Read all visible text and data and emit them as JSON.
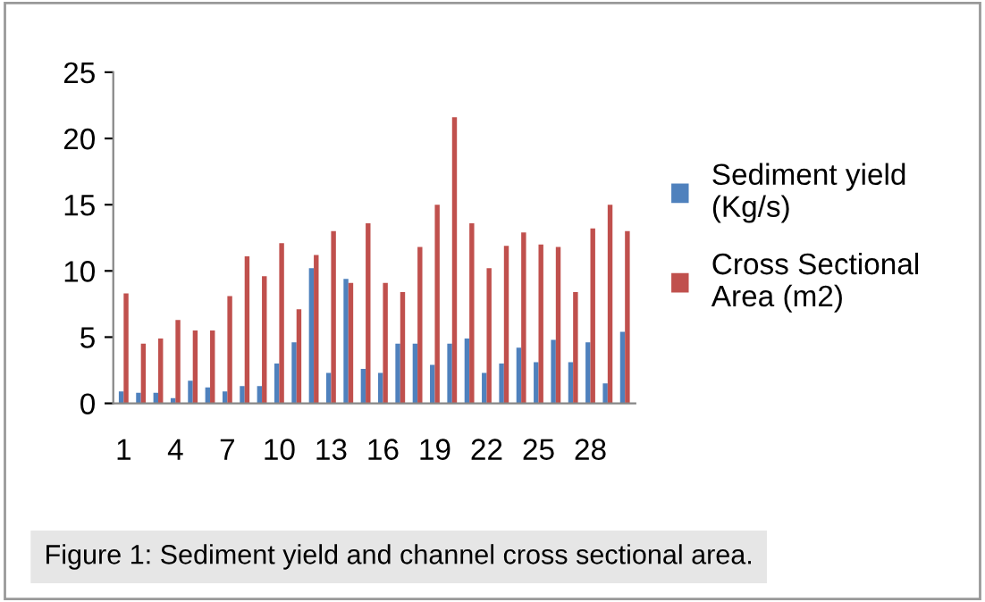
{
  "chart_data": {
    "type": "bar",
    "categories": [
      "1",
      null,
      null,
      "4",
      null,
      null,
      "7",
      null,
      null,
      "10",
      null,
      null,
      "13",
      null,
      null,
      "16",
      null,
      null,
      "19",
      null,
      null,
      "22",
      null,
      null,
      "25",
      null,
      null,
      "28",
      null,
      null
    ],
    "series": [
      {
        "name": "Sediment yield\n(Kg/s)",
        "color": "#4f81bd",
        "values": [
          0.9,
          0.8,
          0.8,
          0.4,
          1.7,
          1.2,
          0.9,
          1.3,
          1.3,
          3.0,
          4.6,
          10.2,
          2.3,
          9.4,
          2.6,
          2.3,
          4.5,
          4.5,
          2.9,
          4.5,
          4.9,
          2.3,
          3.0,
          4.2,
          3.1,
          4.8,
          3.1,
          4.6,
          1.5,
          5.4
        ]
      },
      {
        "name": "Cross Sectional\nArea (m2)",
        "color": "#c0504d",
        "values": [
          8.3,
          4.5,
          4.9,
          6.3,
          5.5,
          5.5,
          8.1,
          11.1,
          9.6,
          12.1,
          7.1,
          11.2,
          13.0,
          9.1,
          13.6,
          9.1,
          8.4,
          11.8,
          15.0,
          21.6,
          13.6,
          10.2,
          11.9,
          12.9,
          12.0,
          11.8,
          8.4,
          13.2,
          15.0,
          13.0
        ]
      }
    ],
    "ylim": [
      0,
      25
    ],
    "yticks": [
      0,
      5,
      10,
      15,
      20,
      25
    ],
    "grid": false,
    "legend": "right",
    "annotations": [
      "Figure 1: Sediment yield and channel cross sectional area."
    ]
  }
}
